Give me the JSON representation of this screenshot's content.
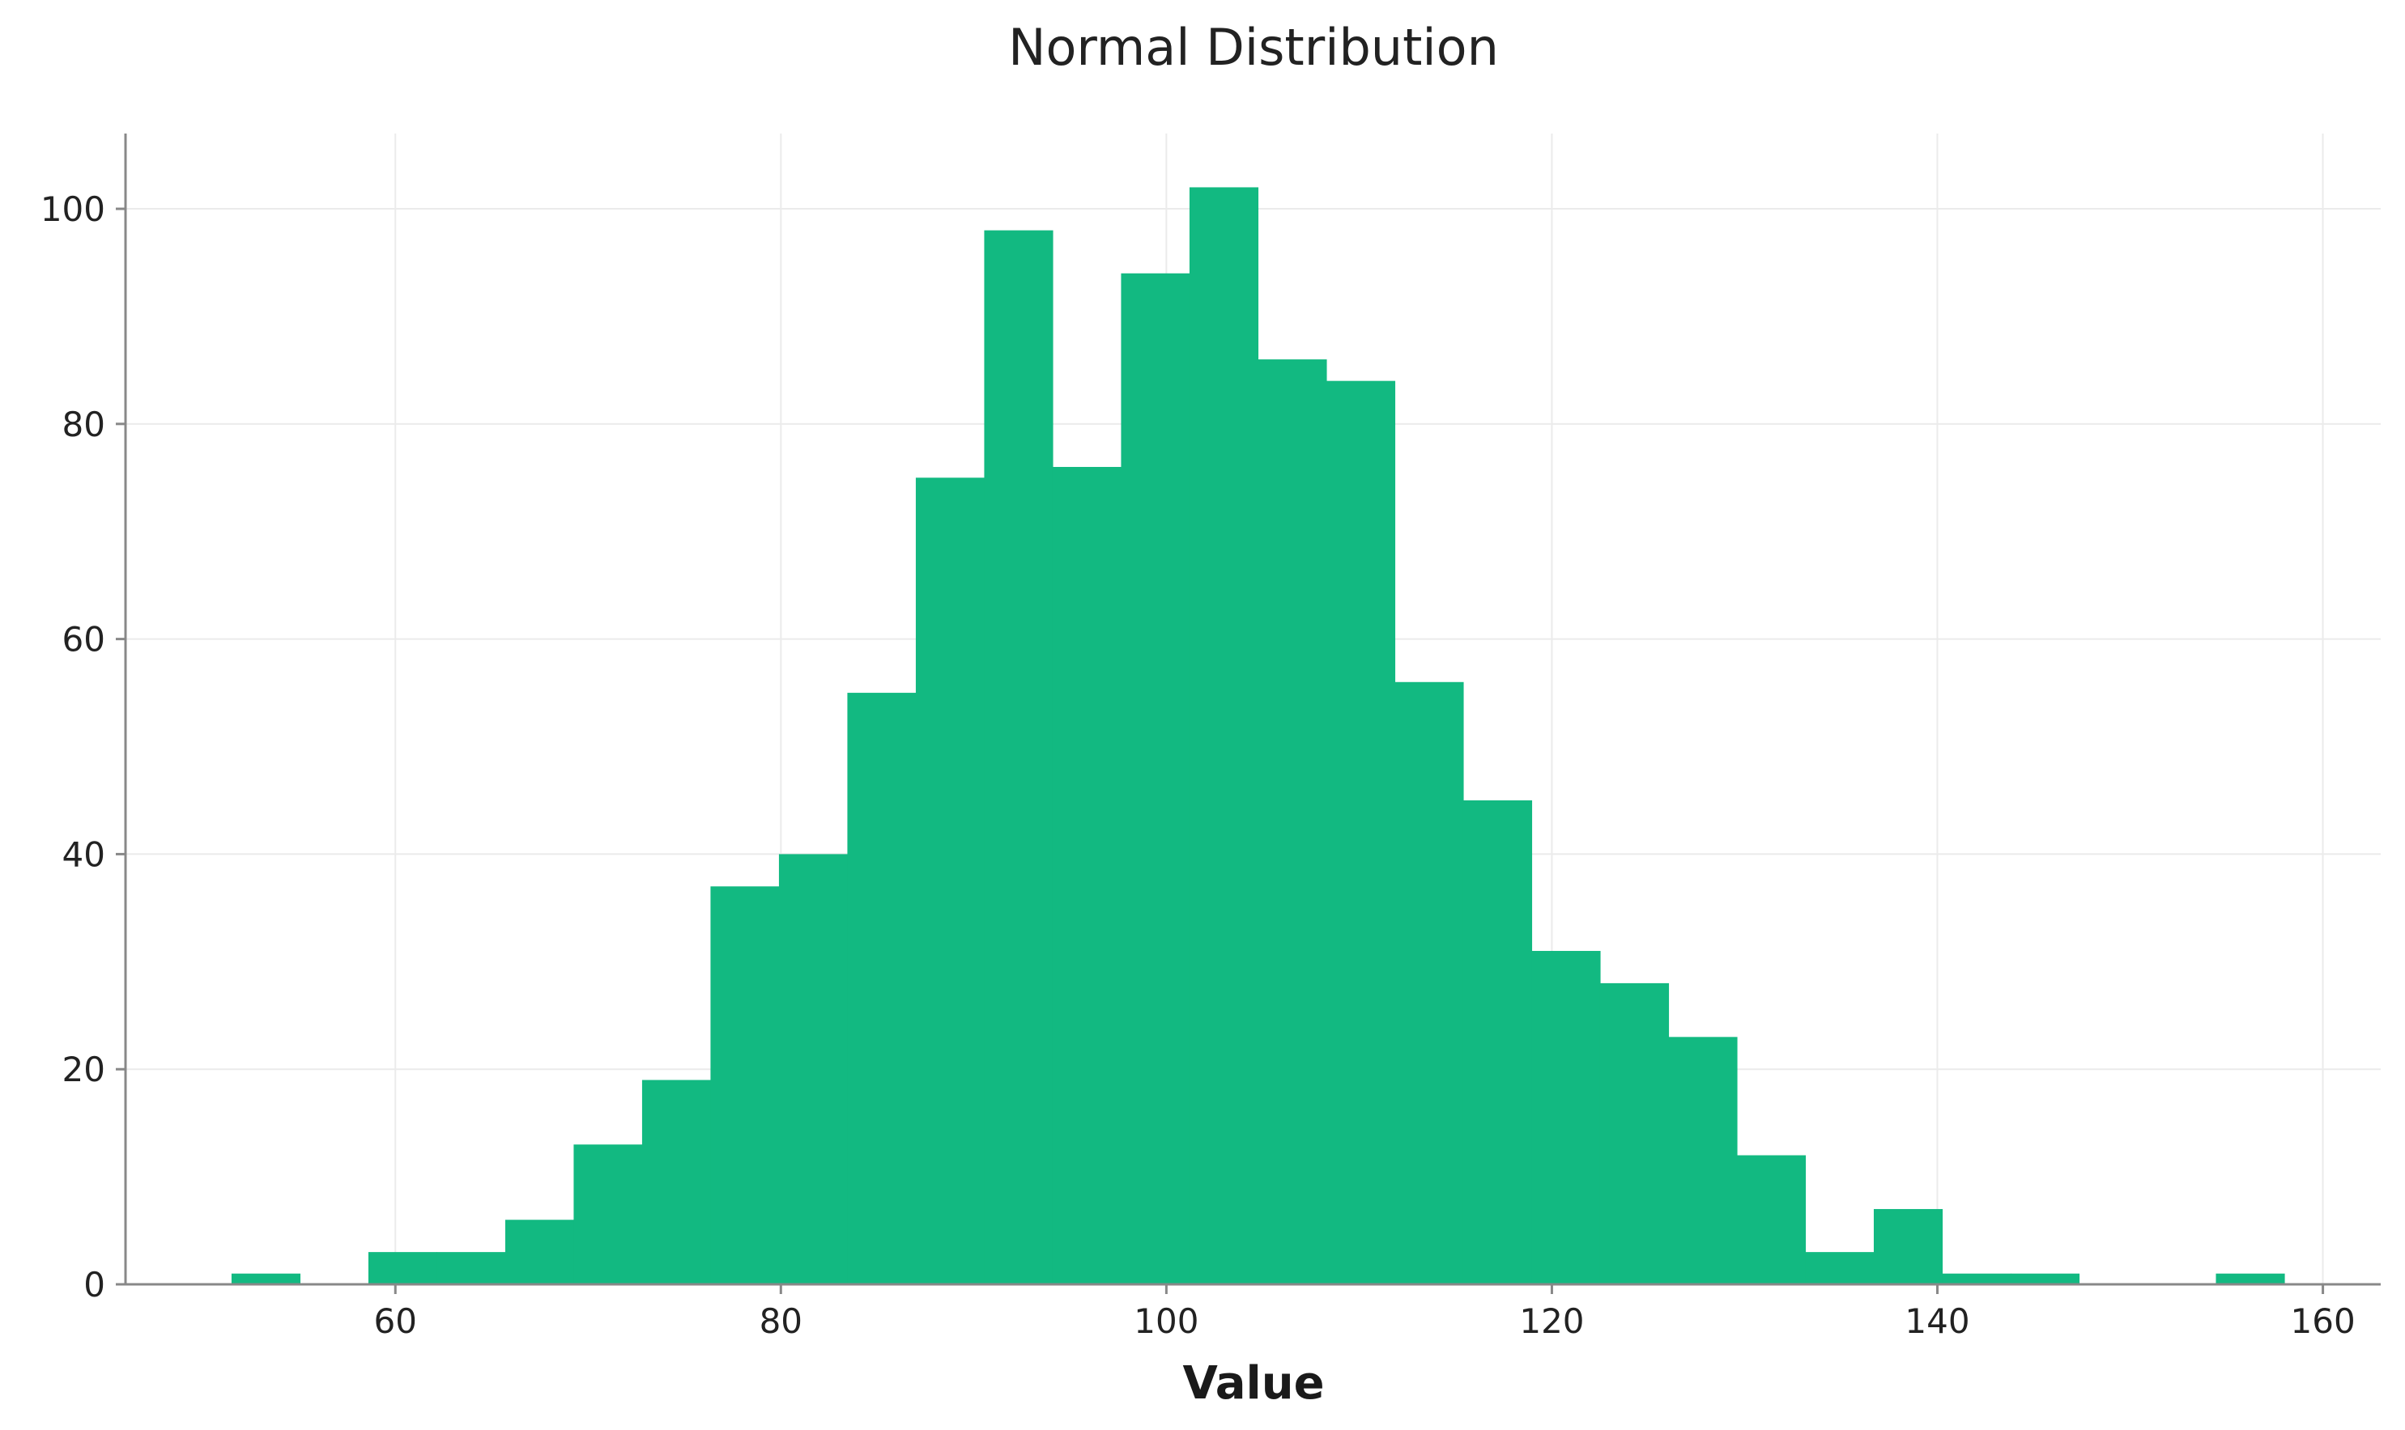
{
  "chart_data": {
    "type": "bar",
    "title": "Normal Distribution",
    "xlabel": "Value",
    "ylabel": "",
    "xlim": [
      46,
      163
    ],
    "ylim": [
      0,
      107
    ],
    "xticks": [
      60,
      80,
      100,
      120,
      140,
      160
    ],
    "yticks": [
      0,
      20,
      40,
      60,
      80,
      100
    ],
    "grid": true,
    "color": "#12b981",
    "bin_start": 51.5,
    "bin_width": 3.55,
    "values": [
      1,
      0,
      3,
      3,
      6,
      13,
      19,
      37,
      40,
      55,
      75,
      98,
      76,
      94,
      102,
      86,
      84,
      56,
      45,
      31,
      28,
      23,
      12,
      3,
      7,
      1,
      1,
      0,
      0,
      1
    ]
  }
}
